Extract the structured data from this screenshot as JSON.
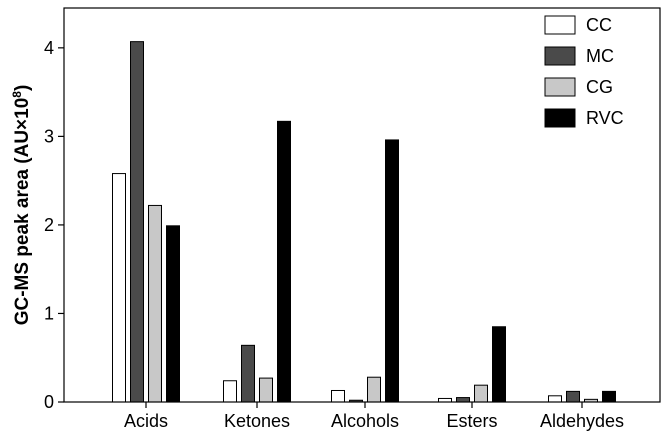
{
  "chart_data": {
    "type": "bar",
    "title": "",
    "xlabel": "",
    "ylabel": "GC-MS peak area (AU×10",
    "ylabel_sup": "8",
    "ylabel_close": ")",
    "ylim": [
      0,
      4.45
    ],
    "yticks": [
      "0",
      "1",
      "2",
      "3",
      "4"
    ],
    "grid": false,
    "legend_position": "top-right",
    "categories": [
      "Acids",
      "Ketones",
      "Alcohols",
      "Esters",
      "Aldehydes"
    ],
    "series": [
      {
        "name": "CC",
        "color": "#ffffff",
        "values": [
          2.58,
          0.24,
          0.13,
          0.04,
          0.07
        ]
      },
      {
        "name": "MC",
        "color": "#4a4a4a",
        "values": [
          4.07,
          0.64,
          0.02,
          0.05,
          0.12
        ]
      },
      {
        "name": "CG",
        "color": "#c8c8c8",
        "values": [
          2.22,
          0.27,
          0.28,
          0.19,
          0.03
        ]
      },
      {
        "name": "RVC",
        "color": "#000000",
        "values": [
          1.99,
          3.17,
          2.96,
          0.85,
          0.12
        ]
      }
    ]
  }
}
